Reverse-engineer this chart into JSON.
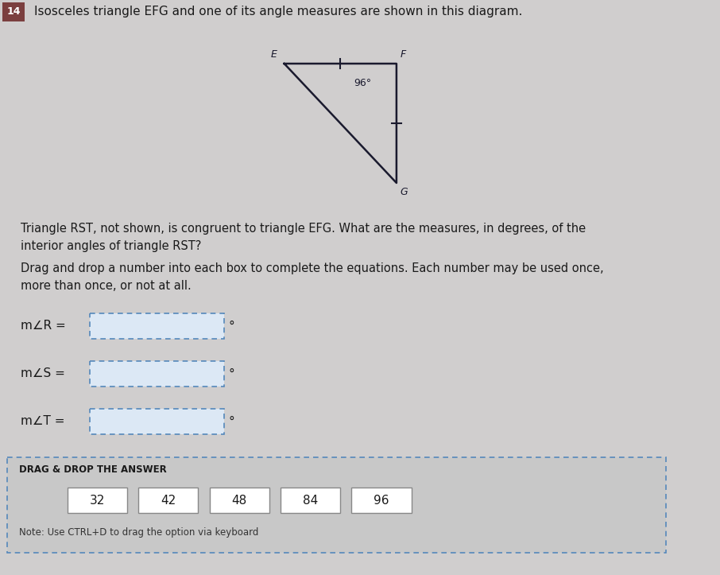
{
  "bg_color": "#d0cece",
  "question_number": "14",
  "question_number_bg": "#7b3f3f",
  "title_text": "Isosceles triangle EFG and one of its angle measures are shown in this diagram.",
  "title_fontsize": 11,
  "triangle": {
    "E": [
      0.0,
      1.0
    ],
    "F": [
      0.55,
      1.0
    ],
    "G": [
      0.55,
      0.0
    ],
    "label_E": "E",
    "label_F": "F",
    "label_G": "G",
    "angle_label": "96°",
    "color": "#1a1a2e",
    "linewidth": 1.8
  },
  "body_text1": "Triangle RST, not shown, is congruent to triangle EFG. What are the measures, in degrees, of the\ninterior angles of triangle RST?",
  "body_text2": "Drag and drop a number into each box to complete the equations. Each number may be used once,\nmore than once, or not at all.",
  "angle_labels": [
    "m∠R =",
    "m∠S =",
    "m∠T ="
  ],
  "degree_symbol": "°",
  "box_color": "#b0c8e8",
  "box_dash_color": "#5588bb",
  "drag_title": "DRAG & DROP THE ANSWER",
  "drag_numbers": [
    "32",
    "42",
    "48",
    "84",
    "96"
  ],
  "note_text": "Note: Use CTRL+D to drag the option via keyboard",
  "fontsize_body": 10.5,
  "fontsize_small": 9.5
}
